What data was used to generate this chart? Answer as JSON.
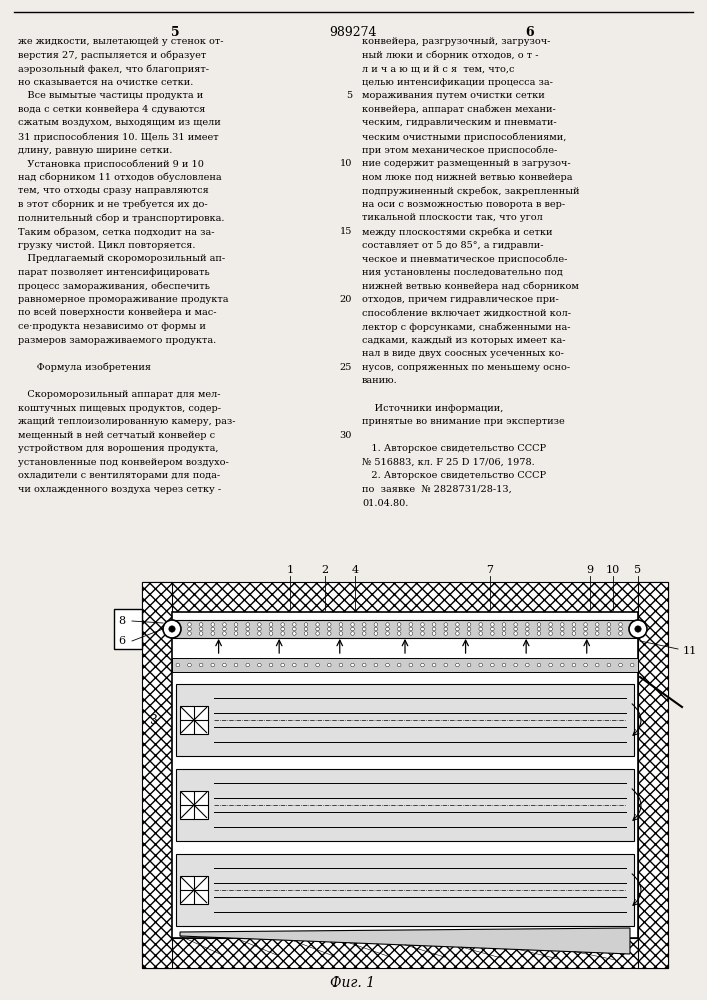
{
  "page_color": "#f0ede8",
  "text_color": "#111111",
  "patent_number": "989274",
  "page_left": "5",
  "page_right": "6",
  "fig_label": "Фиг. 1",
  "left_col": [
    "же жидкости, вылетающей у стенок от-",
    "верстия 27, распыляется и образует",
    "аэрозольный факел, что благоприят-",
    "но сказывается на очистке сетки.",
    "   Все вымытые частицы продукта и",
    "вода с сетки конвейера 4 сдуваются",
    "сжатым воздухом, выходящим из щели",
    "31 приспособления 10. Щель 31 имеет",
    "длину, равную ширине сетки.",
    "   Установка приспособлений 9 и 10",
    "над сборником 11 отходов обусловлена",
    "тем, что отходы сразу направляются",
    "в этот сборник и не требуется их до-",
    "полнительный сбор и транспортировка.",
    "Таким образом, сетка подходит на за-",
    "грузку чистой. Цикл повторяется.",
    "   Предлагаемый скороморозильный ап-",
    "парат позволяет интенсифицировать",
    "процесс замораживания, обеспечить",
    "равномерное промораживание продукта",
    "по всей поверхности конвейера и мас-",
    "се·продукта независимо от формы и",
    "размеров замораживаемого продукта.",
    "",
    "      Формула изобретения",
    "",
    "   Скороморозильный аппарат для мел-",
    "коштучных пищевых продуктов, содер-",
    "жащий теплоизолированную камеру, раз-",
    "мещенный в ней сетчатый конвейер с",
    "устройством для ворошения продукта,",
    "установленные под конвейером воздухо-",
    "охладители с вентиляторами для пода-",
    "чи охлажденного воздуха через сетку -"
  ],
  "right_col": [
    "конвейера, разгрузочный, загрузоч-",
    "ный люки и сборник отходов, о т -",
    "л и ч а ю щ и й с я  тем, что,с",
    "целью интенсификации процесса за-",
    "мораживания путем очистки сетки",
    "конвейера, аппарат снабжен механи-",
    "ческим, гидравлическим и пневмати-",
    "ческим очистными приспособлениями,",
    "при этом механическое приспособле-",
    "ние содержит размещенный в загрузоч-",
    "ном люке под нижней ветвью конвейера",
    "подпружиненный скребок, закрепленный",
    "на оси с возможностью поворота в вер-",
    "тикальной плоскости так, что угол",
    "между плоскостями скребка и сетки",
    "составляет от 5 до 85°, а гидравли-",
    "ческое и пневматическое приспособле-",
    "ния установлены последовательно под",
    "нижней ветвью конвейера над сборником",
    "отходов, причем гидравлическое при-",
    "способление включает жидкостной кол-",
    "лектор с форсунками, снабженными на-",
    "садками, каждый из которых имеет ка-",
    "нал в виде двух соосных усеченных ко-",
    "нусов, сопряженных по меньшему осно-",
    "ванию.",
    "",
    "    Источники информации,",
    "принятые во внимание при экспертизе",
    "",
    "   1. Авторское свидетельство СССР",
    "№ 516883, кл. F 25 D 17/06, 1978.",
    "   2. Авторское свидетельство СССР",
    "по  заявке  № 2828731/28-13,",
    "01.04.80."
  ],
  "line_nums": {
    "4": 5,
    "9": 10,
    "14": 15,
    "19": 20,
    "24": 25,
    "29": 30
  },
  "draw": {
    "bg": "#f0ede8",
    "wall_color": "#888888",
    "hatch_color": "#555555",
    "belt_color": "#bbbbbb",
    "cooler_color": "#d8d8d8"
  }
}
